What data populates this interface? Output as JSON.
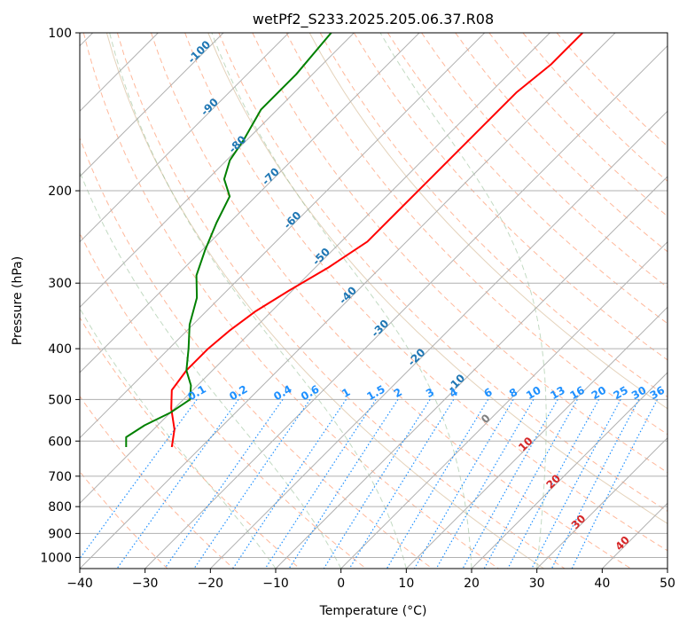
{
  "chart_data": {
    "type": "line",
    "subtype": "skew-t log-p diagram",
    "title": "wetPf2_S233.2025.205.06.37.R08",
    "xlabel": "Temperature (°C)",
    "ylabel": "Pressure (hPa)",
    "xlim": [
      -40,
      50
    ],
    "ylim": [
      1050,
      100
    ],
    "y_scale": "log",
    "x_ticks": [
      -40,
      -30,
      -20,
      -10,
      0,
      10,
      20,
      30,
      40,
      50
    ],
    "x_tick_labels": [
      "−40",
      "−30",
      "−20",
      "−10",
      "0",
      "10",
      "20",
      "30",
      "40",
      "50"
    ],
    "y_ticks": [
      100,
      200,
      300,
      400,
      500,
      600,
      700,
      800,
      900,
      1000
    ],
    "y_tick_labels": [
      "100",
      "200",
      "300",
      "400",
      "500",
      "600",
      "700",
      "800",
      "900",
      "1000"
    ],
    "grid": true,
    "skew_isotherms_c": [
      -150,
      -140,
      -130,
      -120,
      -110,
      -100,
      -90,
      -80,
      -70,
      -60,
      -50,
      -40,
      -30,
      -20,
      -10,
      0,
      10,
      20,
      30,
      40,
      50
    ],
    "series": [
      {
        "color": "#ff0000",
        "points": [
          {
            "p": 616,
            "t": -44.5
          },
          {
            "p": 570,
            "t": -46.8
          },
          {
            "p": 520,
            "t": -50.5
          },
          {
            "p": 480,
            "t": -53.2
          },
          {
            "p": 440,
            "t": -54.0
          },
          {
            "p": 400,
            "t": -54.0
          },
          {
            "p": 370,
            "t": -53.5
          },
          {
            "p": 340,
            "t": -52.5
          },
          {
            "p": 310,
            "t": -50.5
          },
          {
            "p": 280,
            "t": -48.0
          },
          {
            "p": 250,
            "t": -46.0
          },
          {
            "p": 220,
            "t": -46.0
          },
          {
            "p": 190,
            "t": -46.0
          },
          {
            "p": 170,
            "t": -46.0
          },
          {
            "p": 150,
            "t": -46.0
          },
          {
            "p": 130,
            "t": -46.0
          },
          {
            "p": 115,
            "t": -45.0
          },
          {
            "p": 100,
            "t": -45.0
          }
        ]
      },
      {
        "color": "#008000",
        "points": [
          {
            "p": 616,
            "t": -51.5
          },
          {
            "p": 590,
            "t": -53.0
          },
          {
            "p": 560,
            "t": -52.0
          },
          {
            "p": 530,
            "t": -50.0
          },
          {
            "p": 500,
            "t": -49.0
          },
          {
            "p": 470,
            "t": -51.0
          },
          {
            "p": 440,
            "t": -54.0
          },
          {
            "p": 400,
            "t": -57.0
          },
          {
            "p": 360,
            "t": -60.5
          },
          {
            "p": 320,
            "t": -63.5
          },
          {
            "p": 290,
            "t": -67.0
          },
          {
            "p": 260,
            "t": -69.5
          },
          {
            "p": 230,
            "t": -72.0
          },
          {
            "p": 205,
            "t": -74.0
          },
          {
            "p": 190,
            "t": -77.5
          },
          {
            "p": 175,
            "t": -79.5
          },
          {
            "p": 160,
            "t": -80.5
          },
          {
            "p": 140,
            "t": -82.5
          },
          {
            "p": 120,
            "t": -82.5
          },
          {
            "p": 100,
            "t": -83.5
          }
        ]
      }
    ],
    "dry_adiabats_c": [
      -30,
      -20,
      -10,
      0,
      10,
      20,
      30,
      40,
      50,
      60,
      70,
      80,
      90,
      100,
      110,
      120,
      130,
      140,
      150,
      160
    ],
    "moist_adiabats_c": [
      -10,
      0,
      10,
      20,
      30
    ],
    "mixing_ratio_lines": [
      {
        "w": 0.1,
        "label": "0.1"
      },
      {
        "w": 0.2,
        "label": "0.2"
      },
      {
        "w": 0.4,
        "label": "0.4"
      },
      {
        "w": 0.6,
        "label": "0.6"
      },
      {
        "w": 1,
        "label": "1"
      },
      {
        "w": 1.5,
        "label": "1.5"
      },
      {
        "w": 2,
        "label": "2"
      },
      {
        "w": 3,
        "label": "3"
      },
      {
        "w": 4,
        "label": "4"
      },
      {
        "w": 6,
        "label": "6"
      },
      {
        "w": 8,
        "label": "8"
      },
      {
        "w": 10,
        "label": "10"
      },
      {
        "w": 13,
        "label": "13"
      },
      {
        "w": 16,
        "label": "16"
      },
      {
        "w": 20,
        "label": "20"
      },
      {
        "w": 25,
        "label": "25"
      },
      {
        "w": 30,
        "label": "30"
      },
      {
        "w": 36,
        "label": "36"
      }
    ],
    "isotherm_labels": [
      {
        "text": "-100",
        "t": -100
      },
      {
        "text": "-90",
        "t": -90
      },
      {
        "text": "-80",
        "t": -80
      },
      {
        "text": "-70",
        "t": -70
      },
      {
        "text": "-60",
        "t": -60
      },
      {
        "text": "-50",
        "t": -50
      },
      {
        "text": "-40",
        "t": -40
      },
      {
        "text": "-30",
        "t": -30
      },
      {
        "text": "-20",
        "t": -20
      },
      {
        "text": "-10",
        "t": -10
      }
    ],
    "warm_isotherm_labels": [
      {
        "text": "0",
        "t": 0,
        "color": "#808080"
      },
      {
        "text": "10",
        "t": 10,
        "color": "#d62728"
      },
      {
        "text": "20",
        "t": 20,
        "color": "#d62728"
      },
      {
        "text": "30",
        "t": 30,
        "color": "#d62728"
      },
      {
        "text": "40",
        "t": 40,
        "color": "#d62728"
      }
    ],
    "colors": {
      "isotherm": "#b0b0b0",
      "isobar": "#b0b0b0",
      "dry_adiabat": "#ffa07a",
      "moist_adiabat": "#8fbc8f",
      "mixing_ratio": "#1e90ff",
      "cold_isotherm_label": "#1f77b4",
      "mixing_label": "#1e90ff",
      "base_contour": "#d2b48c"
    }
  }
}
